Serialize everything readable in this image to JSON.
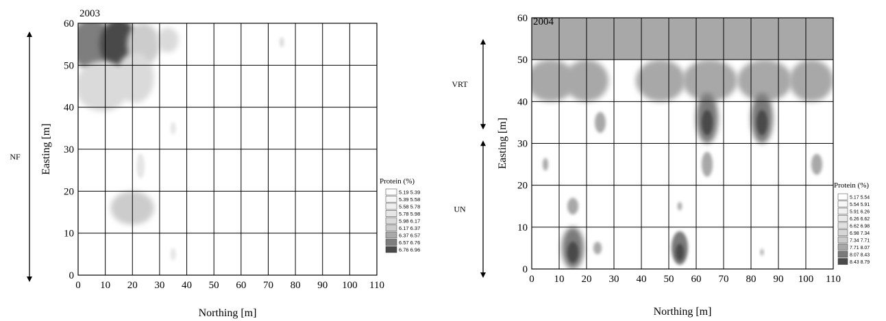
{
  "chart_data": [
    {
      "type": "heatmap",
      "title": "2003",
      "xlabel": "Northing [m]",
      "ylabel": "Easting [m]",
      "xlim": [
        0,
        110
      ],
      "ylim": [
        0,
        60
      ],
      "x_ticks": [
        "0",
        "10",
        "20",
        "30",
        "40",
        "50",
        "60",
        "70",
        "80",
        "90",
        "100",
        "110"
      ],
      "y_ticks": [
        "0",
        "10",
        "20",
        "30",
        "40",
        "50",
        "60"
      ],
      "grid": true,
      "legend_title": "Protein (%)",
      "legend_position": "right",
      "legend": [
        {
          "label": "5.19  5.39",
          "color": "#fdfdfd"
        },
        {
          "label": "5.39  5.58",
          "color": "#f7f7f7"
        },
        {
          "label": "5.58  5.78",
          "color": "#efefef"
        },
        {
          "label": "5.78  5.98",
          "color": "#e6e6e6"
        },
        {
          "label": "5.98  6.17",
          "color": "#dadada"
        },
        {
          "label": "6.17  6.37",
          "color": "#cccccc"
        },
        {
          "label": "6.37  6.57",
          "color": "#a9a9a9"
        },
        {
          "label": "6.57  6.76",
          "color": "#7e7e7e"
        },
        {
          "label": "6.76  6.96",
          "color": "#4a4a4a"
        }
      ],
      "zones": [
        {
          "label": "NF",
          "from": 0,
          "to": 60
        }
      ],
      "patches": [
        {
          "x": 5,
          "y": 55,
          "rx": 8,
          "ry": 6,
          "level": 7
        },
        {
          "x": 15,
          "y": 55,
          "rx": 7,
          "ry": 6,
          "level": 8
        },
        {
          "x": 24,
          "y": 55,
          "rx": 6,
          "ry": 5,
          "level": 5
        },
        {
          "x": 33,
          "y": 56,
          "rx": 4,
          "ry": 3,
          "level": 4
        },
        {
          "x": 9,
          "y": 45,
          "rx": 10,
          "ry": 6,
          "level": 4
        },
        {
          "x": 21,
          "y": 47,
          "rx": 7,
          "ry": 6,
          "level": 4
        },
        {
          "x": 23,
          "y": 26,
          "rx": 1.5,
          "ry": 3,
          "level": 3
        },
        {
          "x": 20,
          "y": 16,
          "rx": 8,
          "ry": 4,
          "level": 5
        },
        {
          "x": 35,
          "y": 35,
          "rx": 1,
          "ry": 1.5,
          "level": 3
        },
        {
          "x": 35,
          "y": 5,
          "rx": 1,
          "ry": 1.5,
          "level": 3
        },
        {
          "x": 75,
          "y": 55.5,
          "rx": 0.8,
          "ry": 1.2,
          "level": 4
        }
      ]
    },
    {
      "type": "heatmap",
      "title": "2004",
      "xlabel": "Northing [m]",
      "ylabel": "Easting [m]",
      "xlim": [
        0,
        110
      ],
      "ylim": [
        0,
        60
      ],
      "x_ticks": [
        "0",
        "10",
        "20",
        "30",
        "40",
        "50",
        "60",
        "70",
        "80",
        "90",
        "100",
        "110"
      ],
      "y_ticks": [
        "0",
        "10",
        "20",
        "30",
        "40",
        "50",
        "60"
      ],
      "grid": true,
      "legend_title": "Protein (%)",
      "legend_position": "right",
      "legend": [
        {
          "label": "5.17  5.54",
          "color": "#fdfdfd"
        },
        {
          "label": "5.54  5.91",
          "color": "#f7f7f7"
        },
        {
          "label": "5.91  6.26",
          "color": "#f0f0f0"
        },
        {
          "label": "6.26  6.62",
          "color": "#e8e8e8"
        },
        {
          "label": "6.62  6.98",
          "color": "#e0e0e0"
        },
        {
          "label": "6.98  7.34",
          "color": "#d6d6d6"
        },
        {
          "label": "7.34  7.71",
          "color": "#cbcbcb"
        },
        {
          "label": "7.71  8.07",
          "color": "#a8a8a8"
        },
        {
          "label": "8.07  8.43",
          "color": "#7a7a7a"
        },
        {
          "label": "8.43  8.79",
          "color": "#4a4a4a"
        }
      ],
      "zones": [
        {
          "label": "VRT",
          "from": 32,
          "to": 60
        },
        {
          "label": "UN",
          "from": 0,
          "to": 32
        }
      ],
      "patches": [
        {
          "x": 7,
          "y": 45,
          "rx": 9,
          "ry": 5,
          "level": 7
        },
        {
          "x": 20,
          "y": 45,
          "rx": 8,
          "ry": 5,
          "level": 7
        },
        {
          "x": 47,
          "y": 45,
          "rx": 9,
          "ry": 5,
          "level": 7
        },
        {
          "x": 65,
          "y": 45,
          "rx": 10,
          "ry": 5,
          "level": 7
        },
        {
          "x": 85,
          "y": 45,
          "rx": 10,
          "ry": 5,
          "level": 7
        },
        {
          "x": 102,
          "y": 45,
          "rx": 8,
          "ry": 5,
          "level": 7
        },
        {
          "x": 64,
          "y": 36,
          "rx": 4,
          "ry": 6,
          "level": 8
        },
        {
          "x": 64,
          "y": 35,
          "rx": 2,
          "ry": 3,
          "level": 9
        },
        {
          "x": 84,
          "y": 36,
          "rx": 4,
          "ry": 6,
          "level": 8
        },
        {
          "x": 84,
          "y": 35,
          "rx": 2,
          "ry": 3,
          "level": 9
        },
        {
          "x": 25,
          "y": 35,
          "rx": 2,
          "ry": 2.5,
          "level": 7
        },
        {
          "x": 64,
          "y": 25,
          "rx": 2,
          "ry": 3,
          "level": 7
        },
        {
          "x": 5,
          "y": 25,
          "rx": 1,
          "ry": 1.5,
          "level": 7
        },
        {
          "x": 104,
          "y": 25,
          "rx": 2,
          "ry": 2.5,
          "level": 7
        },
        {
          "x": 15,
          "y": 15,
          "rx": 2,
          "ry": 2,
          "level": 7
        },
        {
          "x": 15,
          "y": 5,
          "rx": 4,
          "ry": 5,
          "level": 8
        },
        {
          "x": 15,
          "y": 4,
          "rx": 2,
          "ry": 2.5,
          "level": 9
        },
        {
          "x": 24,
          "y": 5,
          "rx": 1.5,
          "ry": 1.5,
          "level": 7
        },
        {
          "x": 54,
          "y": 5,
          "rx": 3,
          "ry": 4,
          "level": 8
        },
        {
          "x": 54,
          "y": 4,
          "rx": 1.5,
          "ry": 2,
          "level": 9
        },
        {
          "x": 54,
          "y": 15,
          "rx": 0.8,
          "ry": 1,
          "level": 7
        },
        {
          "x": 84,
          "y": 4,
          "rx": 0.6,
          "ry": 0.8,
          "level": 7
        }
      ],
      "band": {
        "from": 50,
        "to": 60,
        "level": 7
      }
    }
  ]
}
